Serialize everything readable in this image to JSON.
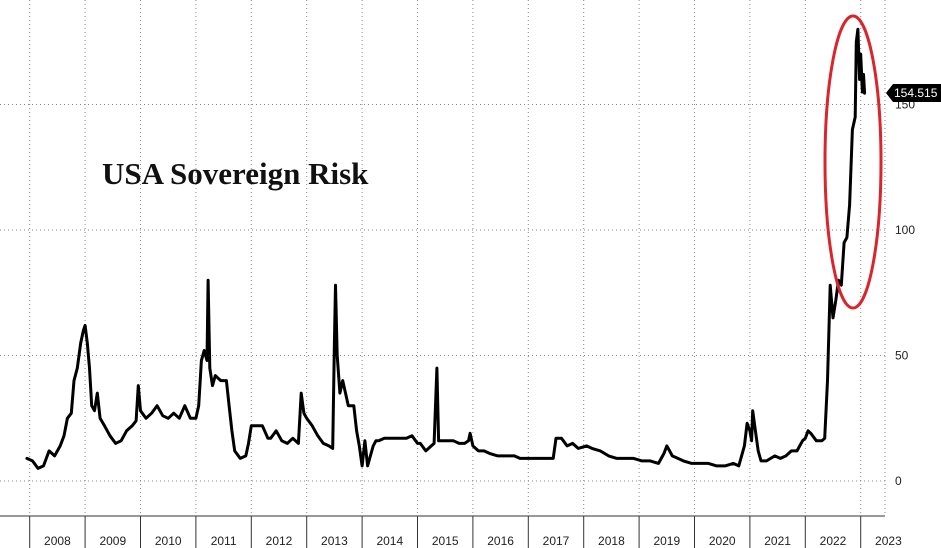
{
  "chart_data": {
    "type": "line",
    "title": "USA Sovereign Risk",
    "xlabel": "",
    "ylabel": "",
    "x_tick_labels": [
      "2008",
      "2009",
      "2010",
      "2011",
      "2012",
      "2013",
      "2014",
      "2015",
      "2016",
      "2017",
      "2018",
      "2019",
      "2020",
      "2021",
      "2022",
      "2023"
    ],
    "y_ticks": [
      0,
      50,
      100,
      150
    ],
    "ylim": [
      -13,
      190
    ],
    "xlim": [
      2007.95,
      2023.75
    ],
    "grid": true,
    "y_axis_side": "right",
    "last_value_label": "154.515",
    "colors": {
      "line": "#000000",
      "highlight_ellipse": "#d9262c",
      "callout_bg": "#000000"
    },
    "series": [
      {
        "values": [
          [
            2007.95,
            9
          ],
          [
            2008.05,
            8
          ],
          [
            2008.15,
            5
          ],
          [
            2008.25,
            6
          ],
          [
            2008.35,
            12
          ],
          [
            2008.45,
            10
          ],
          [
            2008.55,
            14
          ],
          [
            2008.62,
            18
          ],
          [
            2008.68,
            25
          ],
          [
            2008.75,
            27
          ],
          [
            2008.8,
            40
          ],
          [
            2008.86,
            45
          ],
          [
            2008.92,
            55
          ],
          [
            2008.97,
            60
          ],
          [
            2009.0,
            62
          ],
          [
            2009.04,
            55
          ],
          [
            2009.08,
            45
          ],
          [
            2009.12,
            30
          ],
          [
            2009.17,
            28
          ],
          [
            2009.22,
            35
          ],
          [
            2009.27,
            25
          ],
          [
            2009.35,
            22
          ],
          [
            2009.45,
            18
          ],
          [
            2009.55,
            15
          ],
          [
            2009.65,
            16
          ],
          [
            2009.75,
            20
          ],
          [
            2009.85,
            22
          ],
          [
            2009.92,
            24
          ],
          [
            2009.96,
            38
          ],
          [
            2010.0,
            28
          ],
          [
            2010.1,
            25
          ],
          [
            2010.2,
            27
          ],
          [
            2010.3,
            30
          ],
          [
            2010.4,
            26
          ],
          [
            2010.5,
            25
          ],
          [
            2010.6,
            27
          ],
          [
            2010.7,
            25
          ],
          [
            2010.8,
            30
          ],
          [
            2010.9,
            25
          ],
          [
            2011.0,
            25
          ],
          [
            2011.05,
            30
          ],
          [
            2011.1,
            48
          ],
          [
            2011.15,
            52
          ],
          [
            2011.2,
            48
          ],
          [
            2011.22,
            80
          ],
          [
            2011.25,
            45
          ],
          [
            2011.3,
            38
          ],
          [
            2011.35,
            42
          ],
          [
            2011.45,
            40
          ],
          [
            2011.55,
            40
          ],
          [
            2011.6,
            30
          ],
          [
            2011.65,
            20
          ],
          [
            2011.7,
            12
          ],
          [
            2011.8,
            9
          ],
          [
            2011.9,
            10
          ],
          [
            2011.95,
            15
          ],
          [
            2012.0,
            22
          ],
          [
            2012.2,
            22
          ],
          [
            2012.3,
            17
          ],
          [
            2012.35,
            17
          ],
          [
            2012.45,
            20
          ],
          [
            2012.55,
            16
          ],
          [
            2012.65,
            15
          ],
          [
            2012.75,
            17
          ],
          [
            2012.85,
            15
          ],
          [
            2012.9,
            35
          ],
          [
            2012.95,
            27
          ],
          [
            2013.0,
            25
          ],
          [
            2013.1,
            22
          ],
          [
            2013.2,
            18
          ],
          [
            2013.3,
            15
          ],
          [
            2013.4,
            14
          ],
          [
            2013.47,
            13
          ],
          [
            2013.5,
            55
          ],
          [
            2013.52,
            78
          ],
          [
            2013.55,
            50
          ],
          [
            2013.6,
            35
          ],
          [
            2013.65,
            40
          ],
          [
            2013.7,
            35
          ],
          [
            2013.75,
            30
          ],
          [
            2013.85,
            30
          ],
          [
            2013.9,
            20
          ],
          [
            2013.95,
            14
          ],
          [
            2014.0,
            6
          ],
          [
            2014.05,
            16
          ],
          [
            2014.1,
            6
          ],
          [
            2014.2,
            14
          ],
          [
            2014.25,
            16
          ],
          [
            2014.3,
            16
          ],
          [
            2014.4,
            17
          ],
          [
            2014.5,
            17
          ],
          [
            2014.6,
            17
          ],
          [
            2014.7,
            17
          ],
          [
            2014.8,
            17
          ],
          [
            2014.9,
            18
          ],
          [
            2015.0,
            15
          ],
          [
            2015.05,
            15
          ],
          [
            2015.15,
            12
          ],
          [
            2015.25,
            14
          ],
          [
            2015.3,
            15
          ],
          [
            2015.35,
            45
          ],
          [
            2015.38,
            16
          ],
          [
            2015.45,
            16
          ],
          [
            2015.55,
            16
          ],
          [
            2015.65,
            16
          ],
          [
            2015.75,
            15
          ],
          [
            2015.85,
            15
          ],
          [
            2015.92,
            16
          ],
          [
            2015.95,
            19
          ],
          [
            2016.0,
            14
          ],
          [
            2016.1,
            12
          ],
          [
            2016.2,
            12
          ],
          [
            2016.3,
            11
          ],
          [
            2016.45,
            10
          ],
          [
            2016.6,
            10
          ],
          [
            2016.75,
            10
          ],
          [
            2016.85,
            9
          ],
          [
            2016.95,
            9
          ],
          [
            2017.1,
            9
          ],
          [
            2017.2,
            9
          ],
          [
            2017.3,
            9
          ],
          [
            2017.45,
            9
          ],
          [
            2017.5,
            17
          ],
          [
            2017.55,
            17
          ],
          [
            2017.6,
            17
          ],
          [
            2017.7,
            14
          ],
          [
            2017.8,
            15
          ],
          [
            2017.9,
            13
          ],
          [
            2018.05,
            14
          ],
          [
            2018.15,
            13
          ],
          [
            2018.3,
            12
          ],
          [
            2018.45,
            10
          ],
          [
            2018.6,
            9
          ],
          [
            2018.75,
            9
          ],
          [
            2018.9,
            9
          ],
          [
            2019.05,
            8
          ],
          [
            2019.2,
            8
          ],
          [
            2019.35,
            7
          ],
          [
            2019.45,
            11
          ],
          [
            2019.5,
            14
          ],
          [
            2019.55,
            12
          ],
          [
            2019.6,
            10
          ],
          [
            2019.7,
            9
          ],
          [
            2019.8,
            8
          ],
          [
            2019.95,
            7
          ],
          [
            2020.1,
            7
          ],
          [
            2020.25,
            7
          ],
          [
            2020.4,
            6
          ],
          [
            2020.55,
            6
          ],
          [
            2020.7,
            7
          ],
          [
            2020.8,
            6
          ],
          [
            2020.9,
            14
          ],
          [
            2020.95,
            23
          ],
          [
            2021.0,
            20
          ],
          [
            2021.03,
            16
          ],
          [
            2021.05,
            28
          ],
          [
            2021.1,
            20
          ],
          [
            2021.15,
            12
          ],
          [
            2021.2,
            8
          ],
          [
            2021.3,
            8
          ],
          [
            2021.45,
            10
          ],
          [
            2021.55,
            9
          ],
          [
            2021.65,
            10
          ],
          [
            2021.75,
            12
          ],
          [
            2021.85,
            12
          ],
          [
            2021.95,
            16
          ],
          [
            2022.0,
            17
          ],
          [
            2022.05,
            20
          ],
          [
            2022.1,
            19
          ],
          [
            2022.2,
            16
          ],
          [
            2022.3,
            16
          ],
          [
            2022.35,
            17
          ],
          [
            2022.4,
            40
          ],
          [
            2022.45,
            78
          ],
          [
            2022.5,
            65
          ],
          [
            2022.55,
            72
          ],
          [
            2022.6,
            80
          ],
          [
            2022.65,
            78
          ],
          [
            2022.7,
            95
          ],
          [
            2022.75,
            97
          ],
          [
            2022.8,
            110
          ],
          [
            2022.85,
            140
          ],
          [
            2022.9,
            145
          ],
          [
            2022.92,
            175
          ],
          [
            2022.95,
            180
          ],
          [
            2022.98,
            160
          ],
          [
            2023.0,
            170
          ],
          [
            2023.03,
            155
          ],
          [
            2023.05,
            162
          ],
          [
            2023.07,
            154.515
          ]
        ]
      }
    ]
  }
}
